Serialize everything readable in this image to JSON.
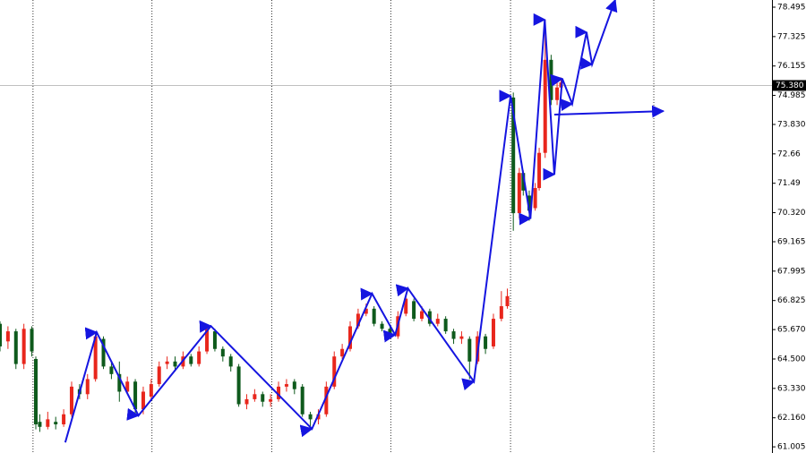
{
  "chart_data": {
    "type": "candlestick",
    "xlim": [
      0,
      194
    ],
    "ylim": [
      60.76,
      78.78
    ],
    "up_color": "#e8261c",
    "down_color": "#0e5a1c",
    "line_color": "#1515e0",
    "yticks": [
      78.495,
      77.325,
      76.155,
      74.985,
      {
        "value": 73.83,
        "label": "73.830"
      },
      72.66,
      71.49,
      {
        "value": 70.32,
        "label": "70.320"
      },
      69.165,
      67.995,
      66.825,
      {
        "value": 65.67,
        "label": "65.670"
      },
      {
        "value": 64.5,
        "label": "64.500"
      },
      {
        "value": 63.33,
        "label": "63.330"
      },
      {
        "value": 62.16,
        "label": "62.160"
      },
      61.005
    ],
    "current_price": {
      "value": 75.38,
      "label": "75.380"
    },
    "separators": [
      8.3,
      38.2,
      68.3,
      98.2,
      128.3,
      164.3
    ],
    "candles": {
      "x": [
        0,
        2,
        4,
        6,
        8,
        9,
        10,
        12,
        14,
        16,
        18,
        20,
        22,
        24,
        26,
        28,
        30,
        32,
        34,
        36,
        38,
        40,
        42,
        44,
        46,
        48,
        50,
        52,
        54,
        56,
        58,
        60,
        62,
        64,
        66,
        68,
        70,
        72,
        74,
        76,
        78,
        80,
        82,
        84,
        86,
        88,
        90,
        92,
        94,
        96,
        98,
        100,
        102,
        104,
        106,
        108,
        110,
        112,
        114,
        116,
        118,
        120,
        122,
        124,
        126,
        127.5,
        129,
        130.5,
        131.5,
        133,
        134.5,
        135.5,
        137,
        138.5,
        140,
        141
      ],
      "open": [
        65.9,
        65.2,
        65.6,
        64.3,
        65.7,
        64.5,
        62.0,
        61.8,
        62.0,
        61.9,
        62.3,
        63.3,
        63.1,
        63.7,
        65.3,
        64.2,
        63.9,
        63.2,
        63.6,
        62.5,
        63.0,
        63.5,
        64.3,
        64.4,
        64.2,
        64.6,
        64.3,
        64.8,
        65.6,
        64.9,
        64.6,
        64.2,
        62.7,
        62.9,
        63.1,
        62.8,
        62.9,
        63.4,
        63.6,
        63.4,
        62.3,
        62.1,
        62.3,
        63.4,
        64.6,
        64.9,
        65.8,
        66.3,
        66.5,
        65.9,
        65.7,
        65.4,
        66.3,
        66.8,
        66.1,
        66.4,
        65.9,
        66.1,
        65.6,
        65.3,
        65.3,
        64.4,
        65.4,
        65.0,
        66.1,
        66.6,
        74.9,
        70.3,
        71.9,
        71.0,
        70.5,
        71.3,
        72.7,
        76.4,
        74.8,
        75.3
      ],
      "close": [
        65.0,
        65.6,
        64.3,
        65.7,
        64.8,
        61.9,
        61.8,
        62.1,
        61.9,
        62.3,
        63.4,
        63.1,
        63.7,
        65.4,
        64.2,
        63.9,
        63.2,
        63.6,
        62.5,
        63.2,
        63.5,
        64.2,
        64.4,
        64.2,
        64.6,
        64.3,
        64.8,
        65.7,
        64.9,
        64.6,
        64.2,
        62.7,
        62.9,
        63.1,
        62.8,
        62.9,
        63.4,
        63.5,
        63.3,
        62.3,
        62.1,
        62.3,
        63.4,
        64.6,
        64.9,
        65.8,
        66.3,
        66.5,
        65.9,
        65.7,
        65.4,
        66.2,
        66.9,
        66.1,
        66.4,
        65.9,
        66.1,
        65.6,
        65.3,
        65.4,
        64.4,
        65.4,
        64.9,
        66.1,
        66.6,
        67.0,
        70.3,
        71.9,
        71.2,
        70.4,
        71.3,
        72.7,
        76.4,
        74.8,
        75.3,
        75.5
      ],
      "high": [
        66.0,
        65.8,
        65.7,
        65.9,
        65.8,
        64.6,
        62.3,
        62.4,
        62.2,
        62.5,
        63.6,
        63.5,
        63.9,
        65.6,
        65.4,
        64.4,
        64.4,
        63.8,
        63.7,
        63.4,
        63.7,
        64.4,
        64.6,
        64.6,
        64.8,
        64.7,
        65.0,
        65.8,
        65.7,
        65.0,
        64.7,
        64.3,
        63.1,
        63.3,
        63.2,
        63.1,
        63.6,
        63.7,
        63.7,
        63.5,
        62.4,
        62.5,
        63.6,
        64.8,
        65.1,
        66.0,
        66.5,
        66.7,
        66.6,
        66.0,
        65.8,
        66.4,
        67.1,
        66.9,
        66.6,
        66.5,
        66.3,
        66.2,
        65.7,
        65.6,
        65.4,
        65.6,
        65.5,
        66.3,
        67.2,
        67.3,
        75.1,
        72.1,
        72.0,
        71.2,
        71.5,
        72.9,
        78.0,
        76.6,
        75.5,
        75.7
      ],
      "low": [
        64.8,
        64.9,
        64.1,
        64.1,
        64.6,
        61.7,
        61.6,
        61.7,
        61.7,
        61.8,
        62.2,
        62.9,
        62.9,
        63.6,
        64.1,
        63.7,
        62.8,
        63.1,
        62.2,
        62.3,
        62.9,
        63.4,
        64.1,
        64.0,
        64.1,
        64.2,
        64.2,
        64.7,
        64.8,
        64.4,
        64.0,
        62.6,
        62.5,
        62.8,
        62.6,
        62.6,
        62.8,
        63.2,
        63.1,
        62.2,
        61.8,
        61.9,
        62.2,
        63.3,
        64.5,
        64.8,
        65.7,
        66.2,
        65.8,
        65.6,
        65.3,
        65.3,
        66.2,
        66.0,
        66.0,
        65.8,
        65.8,
        65.5,
        65.1,
        65.1,
        63.7,
        64.3,
        64.7,
        64.9,
        66.0,
        66.5,
        69.6,
        70.1,
        71.0,
        70.0,
        70.4,
        71.2,
        72.5,
        74.6,
        74.6,
        75.1
      ]
    },
    "zigzag": {
      "x": [
        16.4,
        24.3,
        34.8,
        53.0,
        78.4,
        93.5,
        99.3,
        102.5,
        119.1,
        128.3,
        133.3,
        136.9,
        139.3,
        141.3,
        143.8,
        147.4,
        148.8,
        154.6
      ],
      "y": [
        61.18,
        65.56,
        62.25,
        65.81,
        61.72,
        67.1,
        65.46,
        67.31,
        63.6,
        74.97,
        70.09,
        78.0,
        71.84,
        75.65,
        74.65,
        77.5,
        76.22,
        78.78
      ]
    },
    "projection": {
      "x": [
        139.3,
        166.7
      ],
      "y": [
        74.22,
        74.36
      ]
    }
  }
}
